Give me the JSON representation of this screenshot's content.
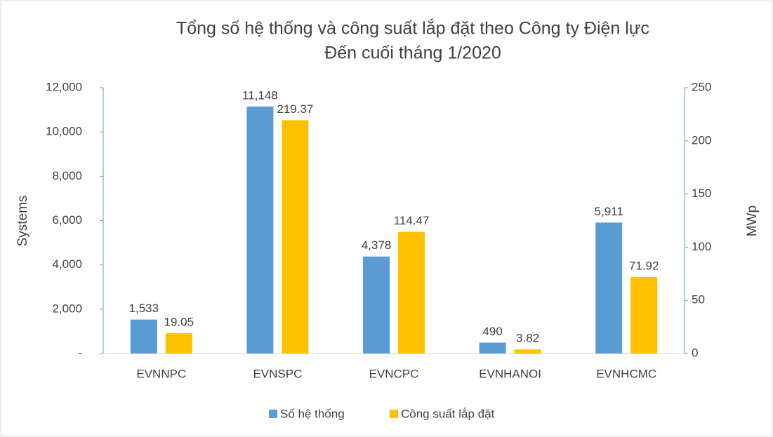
{
  "chart_data": {
    "type": "bar",
    "title": "Tổng số hệ thống và công suất lắp đặt theo Công ty Điện lực",
    "subtitle": "Đến cuối tháng 1/2020",
    "y_label": "Systems",
    "y2_label": "MWp",
    "categories": [
      "EVNNPC",
      "EVNSPC",
      "EVNCPC",
      "EVNHANOI",
      "EVNHCMC"
    ],
    "series": [
      {
        "name": "Số hệ thống",
        "color": "#5b9bd5",
        "values": [
          1533,
          11148,
          4378,
          490,
          5911
        ],
        "value_labels": [
          "1,533",
          "11,148",
          "4,378",
          "490",
          "5,911"
        ]
      },
      {
        "name": "Công suất lắp đặt",
        "color": "#ffc000",
        "axis": "y2",
        "values": [
          19.05,
          219.37,
          114.47,
          3.82,
          71.92
        ]
      }
    ],
    "ylim": [
      0,
      12000
    ],
    "yticks": [
      {
        "value": 0,
        "label": "-"
      },
      {
        "value": 2000,
        "label": "2,000"
      },
      {
        "value": 4000,
        "label": "4,000"
      },
      {
        "value": 6000,
        "label": "6,000"
      },
      {
        "value": 8000,
        "label": "8,000"
      },
      {
        "value": 10000,
        "label": "10,000"
      },
      {
        "value": 12000,
        "label": "12,000"
      }
    ],
    "y2lim": [
      0,
      250
    ],
    "y2ticks": [
      0,
      50,
      100,
      150,
      200,
      250
    ],
    "grid": false,
    "legend": "bottom"
  }
}
